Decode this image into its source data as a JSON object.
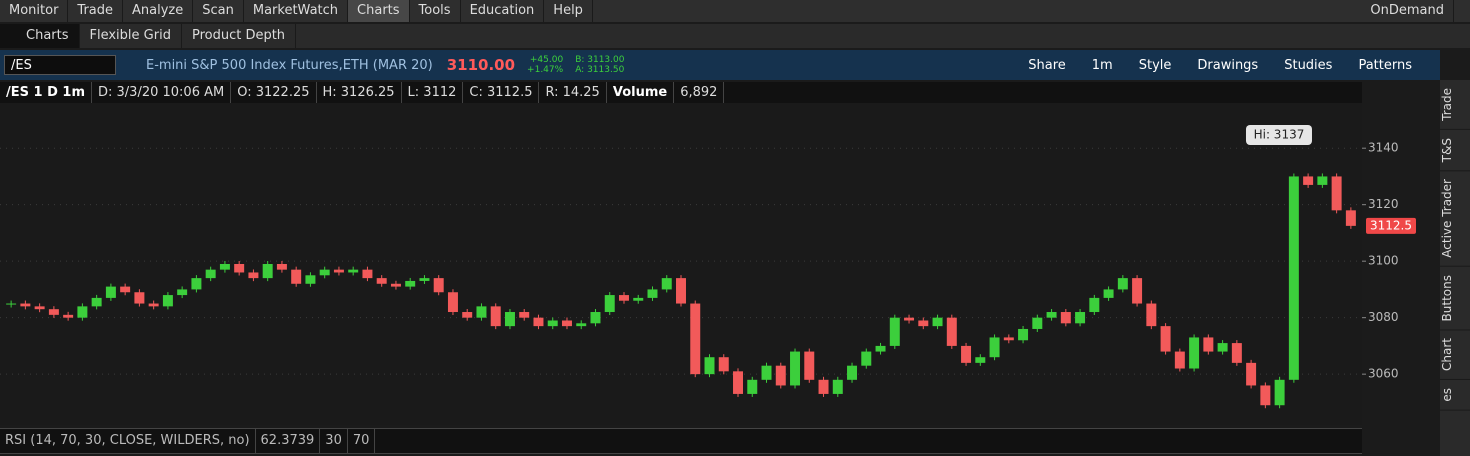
{
  "menu": {
    "items": [
      "Monitor",
      "Trade",
      "Analyze",
      "Scan",
      "MarketWatch",
      "Charts",
      "Tools",
      "Education",
      "Help"
    ],
    "active": 5,
    "ondemand": "OnDemand"
  },
  "tabs": [
    "Charts",
    "Flexible Grid",
    "Product Depth"
  ],
  "toolbar": {
    "symbol": "/ES",
    "description": "E-mini S&P 500 Index Futures,ETH (MAR 20)",
    "last": "3110.00",
    "change": "+45.00",
    "change_pct": "+1.47%",
    "bid": "B: 3113.00",
    "ask": "A: 3113.50",
    "buttons": [
      "Share",
      "1m",
      "Style",
      "Drawings",
      "Studies",
      "Patterns"
    ]
  },
  "info": {
    "symbol": "/ES 1 D 1m",
    "items": [
      "D: 3/3/20 10:06 AM",
      "O: 3122.25",
      "H: 3126.25",
      "L: 3112",
      "C: 3112.5",
      "R: 14.25"
    ],
    "volume_label": "Volume",
    "volume": "6,892"
  },
  "chart_data": {
    "type": "candlestick",
    "values": [
      3085,
      3084,
      3083,
      3081,
      3080,
      3084,
      3087,
      3091,
      3089,
      3085,
      3084,
      3088,
      3090,
      3094,
      3097,
      3099,
      3096,
      3094,
      3099,
      3097,
      3092,
      3095,
      3097,
      3096,
      3097,
      3094,
      3092,
      3091,
      3093,
      3094,
      3089,
      3082,
      3080,
      3084,
      3077,
      3082,
      3080,
      3077,
      3079,
      3077,
      3078,
      3082,
      3088,
      3086,
      3087,
      3090,
      3094,
      3085,
      3060,
      3066,
      3061,
      3053,
      3058,
      3063,
      3056,
      3068,
      3058,
      3053,
      3058,
      3063,
      3068,
      3070,
      3080,
      3079,
      3077,
      3080,
      3070,
      3064,
      3066,
      3073,
      3072,
      3076,
      3080,
      3082,
      3078,
      3082,
      3087,
      3090,
      3094,
      3085,
      3077,
      3068,
      3062,
      3073,
      3068,
      3071,
      3064,
      3056,
      3049,
      3058,
      3130,
      3127,
      3130,
      3118,
      3112.5
    ],
    "ylim": [
      3042,
      3156
    ],
    "yticks": [
      3060,
      3080,
      3100,
      3120,
      3140
    ],
    "grid": true,
    "up_color": "#3ccf3c",
    "down_color": "#f25a5a",
    "high_label": "Hi: 3137",
    "last": 3112.5
  },
  "rsi": {
    "label": "RSI (14, 70, 30, CLOSE, WILDERS, no)",
    "value": "62.3739",
    "levels": [
      "30",
      "70"
    ]
  },
  "sidebar": [
    "Trade",
    "T&S",
    "Active Trader",
    "Buttons",
    "Chart",
    "es"
  ]
}
